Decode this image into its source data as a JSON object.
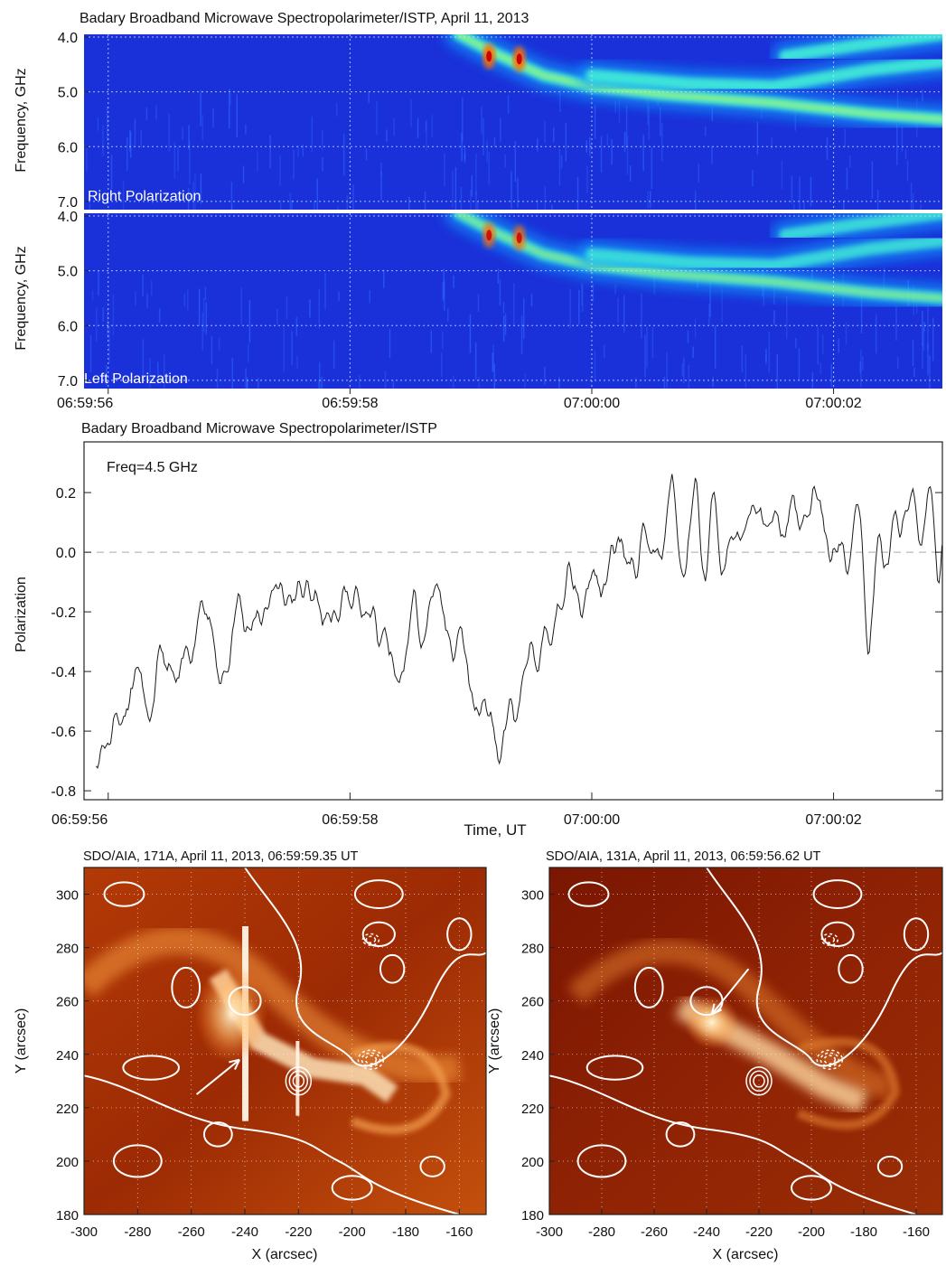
{
  "chart_data": [
    {
      "type": "heatmap",
      "title": "Badary Broadband Microwave Spectropolarimeter/ISTP, April 11, 2013",
      "ylabel": "Frequency, GHz",
      "xlim": [
        "06:59:55.8",
        "07:00:02.9"
      ],
      "x_ticks": [
        "06:59:56",
        "06:59:58",
        "07:00:00",
        "07:00:02"
      ],
      "y_ticks": [
        "4.0",
        "5.0",
        "6.0",
        "7.0"
      ],
      "ylim": [
        3.95,
        7.15
      ],
      "panels": [
        {
          "label": "Right Polarization",
          "peak_intensity": 1.0
        },
        {
          "label": "Left Polarization",
          "peak_intensity": 0.85
        }
      ],
      "drift_burst_tracks": [
        {
          "t": [
            58.9,
            59.2,
            59.6,
            60.0,
            60.6,
            61.5,
            62.3,
            62.9
          ],
          "f": [
            3.95,
            4.3,
            4.7,
            4.9,
            5.05,
            5.2,
            5.4,
            5.5
          ]
        },
        {
          "t": [
            60.0,
            60.8,
            61.5,
            62.3,
            62.9
          ],
          "f": [
            4.7,
            4.85,
            4.9,
            4.6,
            4.45
          ]
        },
        {
          "t": [
            61.6,
            62.2,
            62.9
          ],
          "f": [
            4.35,
            4.15,
            3.95
          ]
        }
      ],
      "peak_points": [
        {
          "t": 59.15,
          "f": 4.35
        },
        {
          "t": 59.4,
          "f": 4.4
        }
      ]
    },
    {
      "type": "line",
      "title": "Badary Broadband Microwave Spectropolarimeter/ISTP",
      "annotation": "Freq=4.5 GHz",
      "xlabel": "Time, UT",
      "ylabel": "Polarization",
      "x_ticks": [
        "06:59:56",
        "06:59:58",
        "07:00:00",
        "07:00:02"
      ],
      "y_ticks": [
        "-0.8",
        "-0.6",
        "-0.4",
        "-0.2",
        "0.0",
        "0.2"
      ],
      "ylim": [
        -0.83,
        0.37
      ],
      "reference_line": 0.0,
      "series": [
        {
          "x": [
            "06:59:55.9",
            "06:59:56.1",
            "06:59:56.3",
            "06:59:56.5",
            "06:59:56.7",
            "06:59:56.9",
            "06:59:57.1",
            "06:59:57.3",
            "06:59:57.5",
            "06:59:57.7",
            "06:59:57.9",
            "06:59:58.1",
            "06:59:58.3",
            "06:59:58.5",
            "06:59:58.7",
            "06:59:58.9",
            "06:59:59.1",
            "06:59:59.3",
            "06:59:59.5",
            "06:59:59.7",
            "06:59:59.9",
            "07:00:00.1",
            "07:00:00.3",
            "07:00:00.5",
            "07:00:00.7",
            "07:00:00.9",
            "07:00:01.1",
            "07:00:01.3",
            "07:00:01.5",
            "07:00:01.7",
            "07:00:01.9",
            "07:00:02.1",
            "07:00:02.3",
            "07:00:02.5",
            "07:00:02.7",
            "07:00:02.9"
          ],
          "y": [
            -0.72,
            -0.55,
            -0.45,
            -0.35,
            -0.3,
            -0.3,
            -0.2,
            -0.15,
            -0.15,
            -0.15,
            -0.12,
            -0.2,
            -0.25,
            -0.3,
            -0.2,
            -0.25,
            -0.6,
            -0.65,
            -0.35,
            -0.25,
            -0.1,
            -0.05,
            0.0,
            0.05,
            0.05,
            0.08,
            0.05,
            0.05,
            0.08,
            0.1,
            0.12,
            -0.05,
            -0.1,
            0.1,
            0.1,
            0.05
          ]
        }
      ]
    },
    {
      "type": "heatmap",
      "title": "SDO/AIA, 171A, April 11, 2013, 06:59:59.35 UT",
      "xlabel": "X (arcsec)",
      "ylabel": "Y (arcsec)",
      "xlim": [
        -300,
        -150
      ],
      "ylim": [
        180,
        310
      ],
      "x_ticks": [
        "-300",
        "-280",
        "-260",
        "-240",
        "-220",
        "-200",
        "-180",
        "-160"
      ],
      "y_ticks": [
        "180",
        "200",
        "220",
        "240",
        "260",
        "280",
        "300"
      ],
      "contour_center": {
        "x": -220,
        "y": 230
      },
      "arrow": {
        "from": [
          -258,
          225
        ],
        "to": [
          -242,
          238
        ]
      }
    },
    {
      "type": "heatmap",
      "title": "SDO/AIA, 131A, April 11, 2013, 06:59:56.62 UT",
      "xlabel": "X (arcsec)",
      "ylabel": "Y (arcsec)",
      "xlim": [
        -300,
        -150
      ],
      "ylim": [
        180,
        310
      ],
      "x_ticks": [
        "-300",
        "-280",
        "-260",
        "-240",
        "-220",
        "-200",
        "-180",
        "-160"
      ],
      "y_ticks": [
        "180",
        "200",
        "220",
        "240",
        "260",
        "280",
        "300"
      ],
      "contour_center": {
        "x": -220,
        "y": 230
      },
      "arrow": {
        "from": [
          -224,
          272
        ],
        "to": [
          -238,
          255
        ]
      }
    }
  ]
}
